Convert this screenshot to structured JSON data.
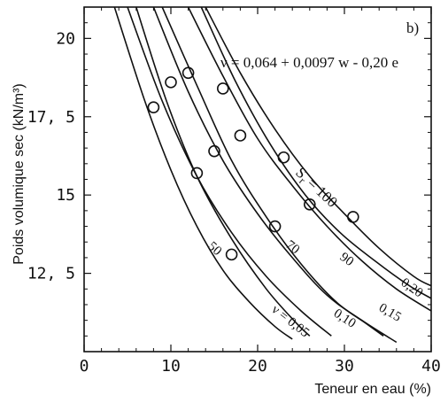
{
  "chart_data": {
    "type": "scatter",
    "xlabel": "Teneur en eau (%)",
    "ylabel": "Poids volumique sec (kN/m³)",
    "xlim": [
      0,
      40
    ],
    "ylim": [
      10,
      21
    ],
    "x_ticks": [
      0,
      10,
      20,
      30,
      40
    ],
    "x_tick_labels": [
      "0",
      "10",
      "20",
      "30",
      "40"
    ],
    "y_ticks": [
      12.5,
      15,
      17.5,
      20
    ],
    "y_tick_labels": [
      "12, 5",
      "15",
      "17, 5",
      "20"
    ],
    "panel_label": "b)",
    "equation": "ν = 0,064 + 0,0097 w - 0,20 e",
    "grid": false,
    "measured_points": [
      {
        "x": 8.0,
        "y": 17.8
      },
      {
        "x": 10.0,
        "y": 18.6
      },
      {
        "x": 12.0,
        "y": 18.9
      },
      {
        "x": 13.0,
        "y": 15.7
      },
      {
        "x": 15.0,
        "y": 16.4
      },
      {
        "x": 16.0,
        "y": 18.4
      },
      {
        "x": 17.0,
        "y": 13.1
      },
      {
        "x": 18.0,
        "y": 16.9
      },
      {
        "x": 22.0,
        "y": 14.0
      },
      {
        "x": 23.0,
        "y": 16.2
      },
      {
        "x": 26.0,
        "y": 14.7
      },
      {
        "x": 31.0,
        "y": 14.3
      }
    ],
    "saturation_curves": [
      {
        "label": "50",
        "points": [
          [
            6.0,
            21.0
          ],
          [
            9.5,
            18.0
          ],
          [
            13.0,
            15.6
          ],
          [
            17.0,
            13.6
          ],
          [
            21.0,
            12.0
          ],
          [
            24.5,
            10.9
          ],
          [
            26.0,
            10.5
          ]
        ]
      },
      {
        "label": "70",
        "points": [
          [
            9.0,
            21.0
          ],
          [
            13.0,
            18.5
          ],
          [
            17.0,
            16.1
          ],
          [
            21.0,
            14.3
          ],
          [
            25.0,
            12.8
          ],
          [
            29.0,
            11.6
          ],
          [
            32.5,
            10.9
          ],
          [
            34.5,
            10.5
          ]
        ]
      },
      {
        "label": "90",
        "points": [
          [
            12.0,
            21.0
          ],
          [
            16.0,
            18.8
          ],
          [
            20.0,
            16.8
          ],
          [
            24.0,
            15.3
          ],
          [
            28.0,
            14.0
          ],
          [
            32.0,
            12.9
          ],
          [
            36.0,
            12.0
          ],
          [
            40.0,
            11.3
          ]
        ]
      },
      {
        "label": "S_r = 100",
        "points": [
          [
            14.0,
            21.0
          ],
          [
            18.0,
            18.9
          ],
          [
            22.0,
            17.1
          ],
          [
            26.0,
            15.6
          ],
          [
            30.0,
            14.4
          ],
          [
            34.0,
            13.3
          ],
          [
            38.0,
            12.4
          ],
          [
            40.0,
            12.1
          ]
        ]
      }
    ],
    "nu_curves": [
      {
        "label": "ν = 0,05",
        "points": [
          [
            3.5,
            21.0
          ],
          [
            7.0,
            18.0
          ],
          [
            10.0,
            15.8
          ],
          [
            13.0,
            14.0
          ],
          [
            16.0,
            12.6
          ],
          [
            19.0,
            11.6
          ],
          [
            22.0,
            10.8
          ],
          [
            24.0,
            10.4
          ]
        ]
      },
      {
        "label": "0,10",
        "points": [
          [
            5.0,
            21.0
          ],
          [
            9.0,
            18.0
          ],
          [
            13.0,
            15.6
          ],
          [
            17.0,
            13.8
          ],
          [
            21.0,
            12.4
          ],
          [
            25.0,
            11.3
          ],
          [
            28.5,
            10.5
          ]
        ]
      },
      {
        "label": "0,15",
        "points": [
          [
            8.0,
            21.0
          ],
          [
            12.0,
            18.3
          ],
          [
            16.0,
            16.1
          ],
          [
            20.0,
            14.4
          ],
          [
            24.0,
            13.0
          ],
          [
            28.0,
            11.8
          ],
          [
            32.0,
            11.0
          ],
          [
            36.0,
            10.3
          ]
        ]
      },
      {
        "label": "0,20",
        "points": [
          [
            13.5,
            21.0
          ],
          [
            17.5,
            18.6
          ],
          [
            21.5,
            16.6
          ],
          [
            25.5,
            15.0
          ],
          [
            29.5,
            13.8
          ],
          [
            33.5,
            12.9
          ],
          [
            37.5,
            12.1
          ],
          [
            40.0,
            11.7
          ]
        ]
      }
    ]
  },
  "annotations": {
    "panel_label": "b)",
    "equation": "ν = 0,064 + 0,0097 w - 0,20 e",
    "sr_prefix": "S",
    "sr_sub": "r",
    "sr_value": " = 100",
    "label_50": "50",
    "label_70": "70",
    "label_90": "90",
    "label_nu": "ν = 0,05",
    "label_010": "0,10",
    "label_015": "0,15",
    "label_020": "0,20"
  }
}
